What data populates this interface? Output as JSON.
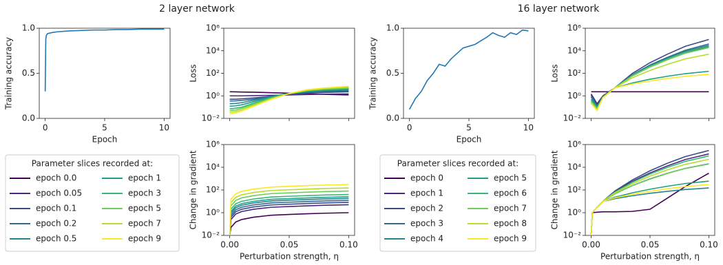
{
  "titles": [
    "2 layer network",
    "16 layer network"
  ],
  "chart_data": [
    {
      "type": "line",
      "xlabel": "Epoch",
      "ylabel": "Training accuracy",
      "color": "#1f77b4",
      "x": [
        0,
        0.05,
        0.1,
        0.2,
        0.5,
        1,
        2,
        3,
        4,
        5,
        6,
        7,
        8,
        9,
        10
      ],
      "values": [
        0.3,
        0.88,
        0.92,
        0.94,
        0.95,
        0.96,
        0.97,
        0.975,
        0.98,
        0.98,
        0.985,
        0.985,
        0.99,
        0.99,
        0.99
      ],
      "xlim": [
        -0.5,
        10.5
      ],
      "xticks": [
        0,
        5,
        10
      ],
      "ylim": [
        0,
        1
      ],
      "yticks": [
        {
          "value": 0,
          "label": "0.0"
        },
        {
          "value": 0.5,
          "label": "0.5"
        },
        {
          "value": 1,
          "label": "1.0"
        }
      ]
    },
    {
      "type": "line",
      "ylabel": "Loss",
      "log_y": true,
      "xtick_labels": false,
      "legend_title": "Parameter slices recorded at:",
      "x": [
        0,
        0.005,
        0.01,
        0.02,
        0.035,
        0.05,
        0.065,
        0.08,
        0.1
      ],
      "xlim": [
        -0.005,
        0.105
      ],
      "xticks": [
        0,
        0.05,
        0.1
      ],
      "ylim": [
        0.01,
        1000000
      ],
      "yticks": [
        {
          "value": 0.01,
          "label": "10⁻²"
        },
        {
          "value": 1,
          "label": "10⁰"
        },
        {
          "value": 100,
          "label": "10²"
        },
        {
          "value": 10000,
          "label": "10⁴"
        },
        {
          "value": 1000000,
          "label": "10⁶"
        }
      ],
      "series": [
        {
          "name": "epoch 0.0",
          "color": "#440154",
          "values": [
            2.3,
            2.25,
            2.2,
            2.1,
            1.9,
            1.7,
            1.5,
            1.35,
            1.2
          ]
        },
        {
          "name": "epoch 0.05",
          "color": "#482878",
          "values": [
            1.0,
            1.0,
            1.0,
            1.05,
            1.1,
            1.2,
            1.3,
            1.4,
            1.5
          ]
        },
        {
          "name": "epoch 0.1",
          "color": "#3e4989",
          "values": [
            0.5,
            0.5,
            0.55,
            0.65,
            0.9,
            1.3,
            1.7,
            2.0,
            2.3
          ]
        },
        {
          "name": "epoch 0.2",
          "color": "#31688e",
          "values": [
            0.35,
            0.36,
            0.4,
            0.5,
            0.9,
            1.5,
            2.0,
            2.4,
            2.8
          ]
        },
        {
          "name": "epoch 0.5",
          "color": "#26828e",
          "values": [
            0.2,
            0.21,
            0.25,
            0.4,
            0.9,
            1.6,
            2.3,
            2.8,
            3.3
          ]
        },
        {
          "name": "epoch 1",
          "color": "#1f9e89",
          "values": [
            0.12,
            0.13,
            0.16,
            0.3,
            0.8,
            1.6,
            2.5,
            3.2,
            3.8
          ]
        },
        {
          "name": "epoch 3",
          "color": "#35b779",
          "values": [
            0.07,
            0.08,
            0.1,
            0.22,
            0.7,
            1.6,
            2.7,
            3.6,
            4.5
          ]
        },
        {
          "name": "epoch 5",
          "color": "#6ece58",
          "values": [
            0.05,
            0.055,
            0.08,
            0.18,
            0.6,
            1.6,
            3,
            4,
            5
          ]
        },
        {
          "name": "epoch 7",
          "color": "#b5de2b",
          "values": [
            0.035,
            0.04,
            0.06,
            0.15,
            0.55,
            1.6,
            3.2,
            4.5,
            6
          ]
        },
        {
          "name": "epoch 9",
          "color": "#fde725",
          "values": [
            0.025,
            0.03,
            0.045,
            0.12,
            0.5,
            1.6,
            3.5,
            5,
            7
          ]
        }
      ]
    },
    {
      "type": "line",
      "ylabel": "Change in gradient",
      "xlabel": "Perturbation strength, η",
      "log_y": true,
      "x": [
        0,
        0.001,
        0.005,
        0.01,
        0.02,
        0.035,
        0.05,
        0.065,
        0.08,
        0.1
      ],
      "xlim": [
        -0.005,
        0.105
      ],
      "xticks": [
        {
          "value": 0,
          "label": "0.00"
        },
        0.05,
        {
          "value": 0.1,
          "label": "0.10"
        }
      ],
      "ylim": [
        0.01,
        1000000
      ],
      "yticks": [
        {
          "value": 0.01,
          "label": "10⁻²"
        },
        {
          "value": 1,
          "label": "10⁰"
        },
        {
          "value": 100,
          "label": "10²"
        },
        {
          "value": 10000,
          "label": "10⁴"
        },
        {
          "value": 1000000,
          "label": "10⁶"
        }
      ],
      "series": [
        {
          "color": "#440154",
          "values": [
            0.01,
            0.05,
            0.15,
            0.25,
            0.4,
            0.6,
            0.7,
            0.8,
            0.9,
            1.0
          ]
        },
        {
          "color": "#482878",
          "values": [
            0.01,
            0.25,
            0.75,
            1.25,
            2,
            3,
            3.5,
            4,
            4.5,
            5
          ]
        },
        {
          "color": "#3e4989",
          "values": [
            0.01,
            0.4,
            1.2,
            2,
            3.2,
            4.8,
            5.6,
            6.4,
            7.2,
            8
          ]
        },
        {
          "color": "#31688e",
          "values": [
            0.01,
            0.6,
            1.8,
            3,
            4.8,
            7.2,
            8.4,
            9.6,
            10.8,
            12
          ]
        },
        {
          "color": "#26828e",
          "values": [
            0.01,
            0.9,
            2.7,
            4.5,
            7.2,
            10.8,
            12.6,
            14.4,
            16.2,
            18
          ]
        },
        {
          "color": "#1f9e89",
          "values": [
            0.01,
            1.25,
            3.75,
            6.25,
            10,
            15,
            17.5,
            20,
            22.5,
            25
          ]
        },
        {
          "color": "#35b779",
          "values": [
            0.01,
            2,
            6,
            10,
            16,
            24,
            28,
            32,
            36,
            40
          ]
        },
        {
          "color": "#6ece58",
          "values": [
            0.01,
            4,
            12,
            20,
            32,
            48,
            56,
            64,
            72,
            80
          ]
        },
        {
          "color": "#b5de2b",
          "values": [
            0.01,
            7.5,
            22.5,
            37.5,
            60,
            90,
            105,
            120,
            135,
            150
          ]
        },
        {
          "color": "#fde725",
          "values": [
            0.01,
            15,
            45,
            75,
            120,
            180,
            210,
            240,
            270,
            300
          ]
        }
      ]
    },
    {
      "type": "line",
      "xlabel": "Epoch",
      "ylabel": "Training accuracy",
      "color": "#1f77b4",
      "x": [
        0,
        0.5,
        1,
        1.5,
        2,
        2.5,
        3,
        3.5,
        4,
        4.5,
        5,
        5.5,
        6,
        6.5,
        7,
        7.5,
        8,
        8.5,
        9,
        9.5,
        10
      ],
      "values": [
        0.1,
        0.22,
        0.3,
        0.42,
        0.5,
        0.6,
        0.58,
        0.66,
        0.72,
        0.78,
        0.8,
        0.82,
        0.86,
        0.9,
        0.95,
        0.92,
        0.9,
        0.95,
        0.93,
        0.98,
        0.97
      ],
      "xlim": [
        -0.5,
        10.5
      ],
      "xticks": [
        0,
        5,
        10
      ],
      "ylim": [
        0,
        1
      ],
      "yticks": [
        {
          "value": 0,
          "label": "0.0"
        },
        {
          "value": 0.5,
          "label": "0.5"
        },
        {
          "value": 1,
          "label": "1.0"
        }
      ]
    },
    {
      "type": "line",
      "ylabel": "Loss",
      "log_y": true,
      "xtick_labels": false,
      "legend_title": "Parameter slices recorded at:",
      "x": [
        0,
        0.005,
        0.01,
        0.02,
        0.035,
        0.05,
        0.065,
        0.08,
        0.1
      ],
      "xlim": [
        -0.005,
        0.105
      ],
      "xticks": [
        0,
        0.05,
        0.1
      ],
      "ylim": [
        0.01,
        1000000
      ],
      "yticks": [
        {
          "value": 0.01,
          "label": "10⁻²"
        },
        {
          "value": 1,
          "label": "10⁰"
        },
        {
          "value": 100,
          "label": "10²"
        },
        {
          "value": 10000,
          "label": "10⁴"
        },
        {
          "value": 1000000,
          "label": "10⁶"
        }
      ],
      "series": [
        {
          "name": "epoch 0",
          "color": "#440154",
          "values": [
            2.3,
            2.3,
            2.3,
            2.3,
            2.3,
            2.3,
            2.3,
            2.3,
            2.3
          ]
        },
        {
          "name": "epoch 1",
          "color": "#482878",
          "values": [
            1.5,
            0.2,
            1,
            5,
            60,
            370,
            1660,
            6300,
            20000
          ]
        },
        {
          "name": "epoch 2",
          "color": "#3e4989",
          "values": [
            1.2,
            0.15,
            0.9,
            5,
            98,
            870,
            5100,
            25000,
            100000
          ]
        },
        {
          "name": "epoch 3",
          "color": "#31688e",
          "values": [
            1.0,
            0.12,
            0.9,
            5,
            74,
            540,
            2700,
            11000,
            40000
          ]
        },
        {
          "name": "epoch 4",
          "color": "#26828e",
          "values": [
            0.8,
            0.1,
            0.8,
            5,
            68,
            470,
            2200,
            8900,
            30000
          ]
        },
        {
          "name": "epoch 5",
          "color": "#1f9e89",
          "values": [
            0.5,
            0.1,
            0.8,
            5,
            14,
            30,
            55,
            93,
            150
          ]
        },
        {
          "name": "epoch 6",
          "color": "#35b779",
          "values": [
            0.4,
            0.08,
            0.7,
            5,
            65,
            420,
            1950,
            7600,
            25000
          ]
        },
        {
          "name": "epoch 7",
          "color": "#6ece58",
          "values": [
            0.3,
            0.07,
            0.7,
            5,
            58,
            360,
            1600,
            6000,
            19000
          ]
        },
        {
          "name": "epoch 8",
          "color": "#b5de2b",
          "values": [
            0.25,
            0.06,
            0.7,
            5,
            40,
            180,
            630,
            1900,
            5000
          ]
        },
        {
          "name": "epoch 9",
          "color": "#fde725",
          "values": [
            0.2,
            0.05,
            0.7,
            5,
            11.5,
            21,
            35,
            54,
            80
          ]
        }
      ]
    },
    {
      "type": "line",
      "ylabel": "Change in gradient",
      "xlabel": "Perturbation strength, η",
      "log_y": true,
      "x": [
        0,
        0.001,
        0.005,
        0.01,
        0.02,
        0.035,
        0.05,
        0.065,
        0.08,
        0.1
      ],
      "xlim": [
        -0.005,
        0.105
      ],
      "xticks": [
        {
          "value": 0,
          "label": "0.00"
        },
        0.05,
        {
          "value": 0.1,
          "label": "0.10"
        }
      ],
      "ylim": [
        0.01,
        1000000
      ],
      "yticks": [
        {
          "value": 0.01,
          "label": "10⁻²"
        },
        {
          "value": 1,
          "label": "10⁰"
        },
        {
          "value": 100,
          "label": "10²"
        },
        {
          "value": 10000,
          "label": "10⁴"
        },
        {
          "value": 1000000,
          "label": "10⁶"
        }
      ],
      "series": [
        {
          "color": "#440154",
          "values": [
            0.01,
            1,
            1.1,
            1.2,
            1.2,
            1.3,
            2,
            20,
            200,
            3000
          ]
        },
        {
          "color": "#482878",
          "values": [
            0.01,
            1,
            3,
            10,
            69,
            575,
            3200,
            13500,
            48000,
            150000
          ]
        },
        {
          "color": "#3e4989",
          "values": [
            0.01,
            1,
            3,
            10,
            79,
            760,
            4900,
            23000,
            87000,
            300000
          ]
        },
        {
          "color": "#31688e",
          "values": [
            0.01,
            1,
            3,
            10,
            46,
            245,
            950,
            3000,
            8000,
            20000
          ]
        },
        {
          "color": "#26828e",
          "values": [
            0.01,
            1,
            3,
            10,
            17,
            31,
            51,
            76,
            110,
            150
          ]
        },
        {
          "color": "#1f9e89",
          "values": [
            0.01,
            1,
            3,
            10,
            23,
            56,
            117,
            215,
            370,
            600
          ]
        },
        {
          "color": "#35b779",
          "values": [
            0.01,
            1,
            3,
            10,
            63,
            480,
            2500,
            10000,
            33000,
            100000
          ]
        },
        {
          "color": "#6ece58",
          "values": [
            0.01,
            1,
            3,
            10,
            45,
            240,
            900,
            2900,
            7800,
            19000
          ]
        },
        {
          "color": "#b5de2b",
          "values": [
            0.01,
            1,
            3,
            10,
            55,
            355,
            1660,
            6000,
            18000,
            50000
          ]
        },
        {
          "color": "#fde725",
          "values": [
            0.01,
            1,
            3,
            10,
            20,
            42,
            77,
            130,
            200,
            300
          ]
        }
      ]
    }
  ]
}
